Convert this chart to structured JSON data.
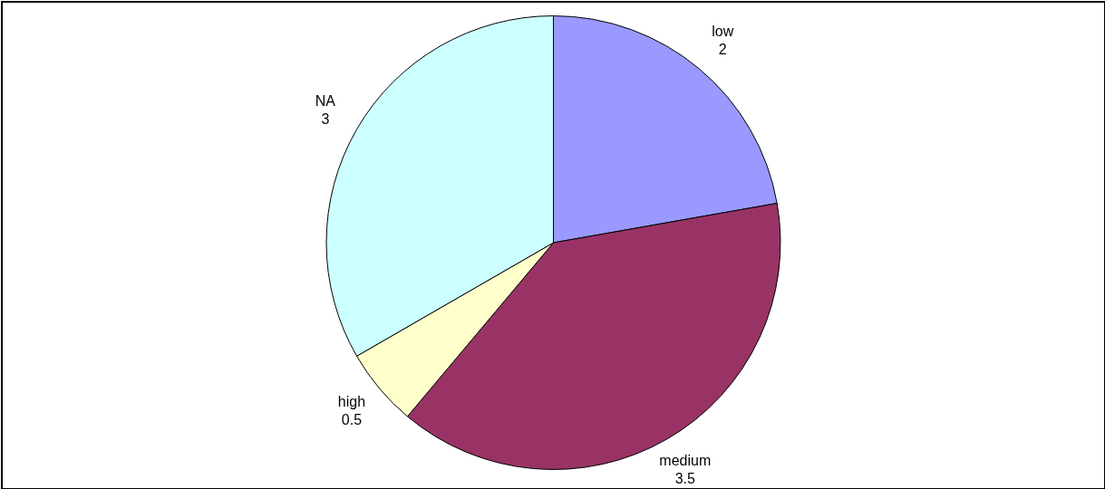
{
  "chart_data": {
    "type": "pie",
    "categories": [
      "low",
      "medium",
      "high",
      "NA"
    ],
    "values": [
      2,
      3.5,
      0.5,
      3
    ],
    "colors": [
      "#9999ff",
      "#993366",
      "#ffffcc",
      "#ccffff"
    ],
    "data_labels": true,
    "legend": false
  }
}
